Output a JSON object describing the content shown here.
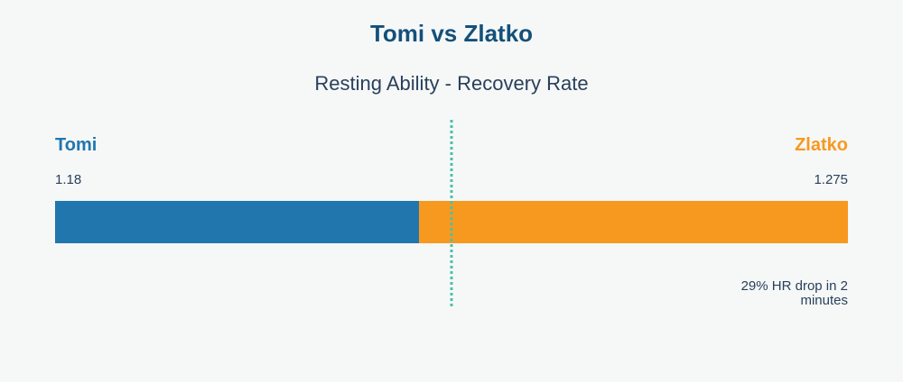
{
  "title": "Tomi vs Zlatko",
  "subtitle": "Resting Ability - Recovery Rate",
  "note": "29% HR drop in 2 minutes",
  "colors": {
    "tomi": "#2176ae",
    "zlatko": "#f7991f",
    "divider": "#4dbfa8",
    "title": "#14507a",
    "text": "#2a3f5c"
  },
  "chart_data": {
    "type": "bar",
    "orientation": "horizontal-stacked-comparison",
    "series": [
      {
        "name": "Tomi",
        "value": 1.18
      },
      {
        "name": "Zlatko",
        "value": 1.275
      }
    ],
    "value_labels": [
      "1.18",
      "1.275"
    ],
    "divider": "dotted vertical line",
    "grid": false
  }
}
